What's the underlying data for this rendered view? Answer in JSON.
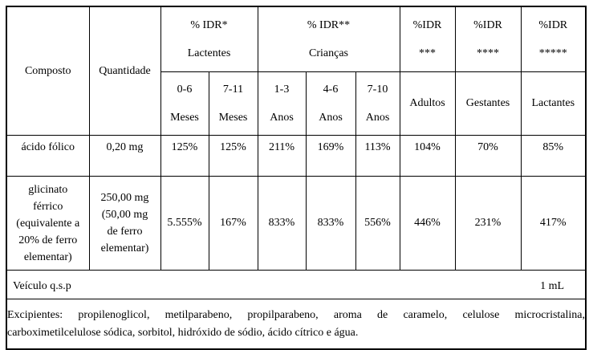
{
  "colors": {
    "border": "#000000",
    "background": "#ffffff",
    "text": "#000000"
  },
  "table": {
    "header": {
      "composto": "Composto",
      "quantidade": "Quantidade",
      "groups": [
        {
          "line1": "% IDR*",
          "line2": "Lactentes"
        },
        {
          "line1": "% IDR**",
          "line2": "Crianças"
        },
        {
          "line1": "%IDR",
          "line2": "***"
        },
        {
          "line1": "%IDR",
          "line2": "****"
        },
        {
          "line1": "%IDR",
          "line2": "*****"
        }
      ],
      "age_cols": [
        {
          "line1": "0-6",
          "line2": "Meses"
        },
        {
          "line1": "7-11",
          "line2": "Meses"
        },
        {
          "line1": "1-3",
          "line2": "Anos"
        },
        {
          "line1": "4-6",
          "line2": "Anos"
        },
        {
          "line1": "7-10",
          "line2": "Anos"
        }
      ],
      "adult_cols": [
        "Adultos",
        "Gestantes",
        "Lactantes"
      ]
    },
    "rows": [
      {
        "compound_lines": [
          "ácido fólico"
        ],
        "quantity_lines": [
          "0,20 mg"
        ],
        "values": [
          "125%",
          "125%",
          "211%",
          "169%",
          "113%",
          "104%",
          "70%",
          "85%"
        ]
      },
      {
        "compound_lines": [
          "glicinato",
          "férrico",
          "(equivalente a",
          "20% de ferro",
          "elementar)"
        ],
        "quantity_lines": [
          "250,00 mg",
          "(50,00 mg",
          "de ferro",
          "elementar)"
        ],
        "values": [
          "5.555%",
          "167%",
          "833%",
          "833%",
          "556%",
          "446%",
          "231%",
          "417%"
        ]
      }
    ],
    "vehicle": {
      "label": "Veículo q.s.p",
      "value": "1 mL"
    },
    "excipients": {
      "line1": "Excipientes: propilenoglicol, metilparabeno, propilparabeno, aroma de caramelo, celulose microcristalina,",
      "line2": "carboximetilcelulose sódica, sorbitol, hidróxido de sódio, ácido cítrico e água."
    }
  }
}
